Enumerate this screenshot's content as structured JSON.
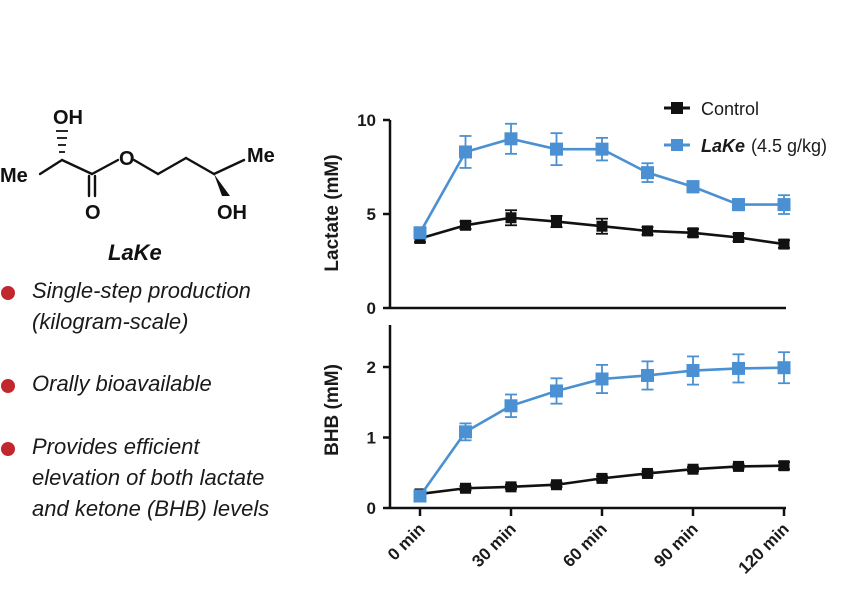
{
  "compound": {
    "name": "LaKe",
    "atoms": {
      "oh_top": "OH",
      "me_left": "Me",
      "o_ester": "O",
      "o_carbonyl": "O",
      "me_right": "Me",
      "oh_bottom": "OH"
    }
  },
  "bullets": [
    {
      "lines": [
        "Single-step production",
        "(kilogram-scale)"
      ]
    },
    {
      "lines": [
        "Orally bioavailable"
      ]
    },
    {
      "lines": [
        "Provides efficient",
        "elevation of both lactate",
        "and ketone (BHB) levels"
      ]
    }
  ],
  "colors": {
    "control": "#111111",
    "lake": "#4a90d2",
    "bullet": "#c0282e"
  },
  "legend": {
    "placement": "top-right",
    "control": "Control",
    "lake_name": "LaKe",
    "lake_dose": "(4.5 g/kg)"
  },
  "chart_data": [
    {
      "type": "line",
      "ylabel": "Lactate (mM)",
      "ylim": [
        0,
        10
      ],
      "yticks": [
        "0",
        "5",
        "10"
      ],
      "x": [
        0,
        15,
        30,
        45,
        60,
        75,
        90,
        105,
        120
      ],
      "series": [
        {
          "name": "Control",
          "values": [
            3.7,
            4.4,
            4.8,
            4.6,
            4.35,
            4.1,
            4.0,
            3.75,
            3.4
          ],
          "errors": [
            0.2,
            0.2,
            0.4,
            0.3,
            0.4,
            0.2,
            0.2,
            0.2,
            0.2
          ]
        },
        {
          "name": "LaKe (4.5 g/kg)",
          "values": [
            4.0,
            8.3,
            9.0,
            8.45,
            8.45,
            7.2,
            6.45,
            5.5,
            5.5
          ],
          "errors": [
            0.25,
            0.85,
            0.8,
            0.85,
            0.6,
            0.5,
            0.3,
            0.3,
            0.5
          ]
        }
      ]
    },
    {
      "type": "line",
      "ylabel": "BHB (mM)",
      "ylim": [
        0,
        2.5
      ],
      "yticks": [
        "0",
        "1",
        "2"
      ],
      "xtick_labels": [
        "0 min",
        "30 min",
        "60 min",
        "90 min",
        "120 min"
      ],
      "xtick_values": [
        0,
        30,
        60,
        90,
        120
      ],
      "x": [
        0,
        15,
        30,
        45,
        60,
        75,
        90,
        105,
        120
      ],
      "series": [
        {
          "name": "Control",
          "values": [
            0.2,
            0.28,
            0.3,
            0.33,
            0.42,
            0.49,
            0.55,
            0.59,
            0.6
          ],
          "errors": [
            0.03,
            0.03,
            0.03,
            0.03,
            0.03,
            0.03,
            0.03,
            0.03,
            0.05
          ]
        },
        {
          "name": "LaKe (4.5 g/kg)",
          "values": [
            0.17,
            1.08,
            1.45,
            1.66,
            1.83,
            1.88,
            1.95,
            1.98,
            1.99
          ],
          "errors": [
            0.05,
            0.12,
            0.16,
            0.18,
            0.2,
            0.2,
            0.2,
            0.2,
            0.22
          ]
        }
      ]
    }
  ]
}
